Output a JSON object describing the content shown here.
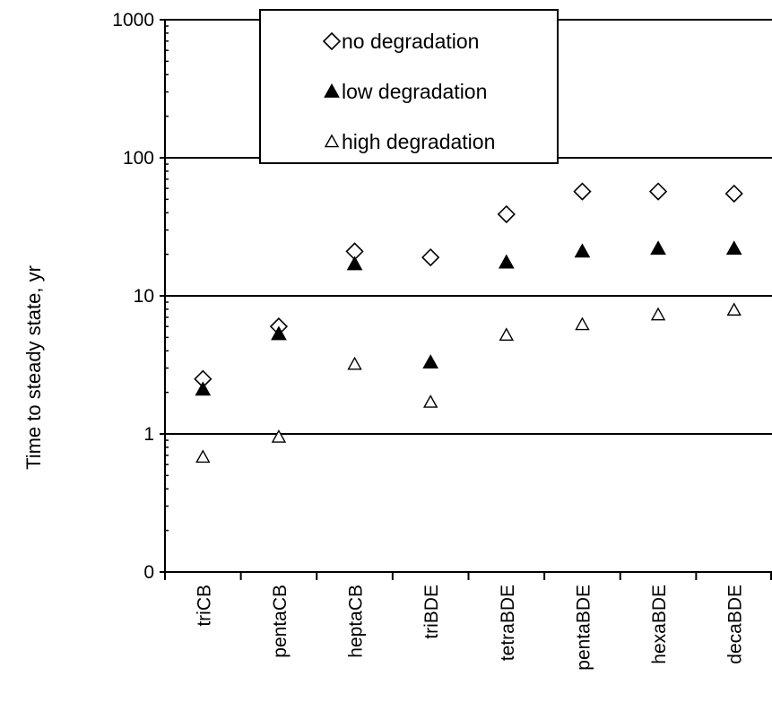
{
  "chart_data": {
    "type": "scatter",
    "categories": [
      "triCB",
      "pentaCB",
      "heptaCB",
      "triBDE",
      "tetraBDE",
      "pentaBDE",
      "hexaBDE",
      "decaBDE"
    ],
    "ylabel": "Time to steady state, yr",
    "y_scale": "log",
    "ylim": [
      0.1,
      1000
    ],
    "y_ticks": [
      {
        "value": 0.1,
        "label": "0"
      },
      {
        "value": 1,
        "label": "1"
      },
      {
        "value": 10,
        "label": "10"
      },
      {
        "value": 100,
        "label": "100"
      },
      {
        "value": 1000,
        "label": "1000"
      }
    ],
    "grid": "horizontal",
    "legend_position": "top-center",
    "series": [
      {
        "name": "no degradation",
        "marker": "diamond-open",
        "values": [
          2.5,
          6.0,
          21,
          19,
          39,
          57,
          57,
          55
        ]
      },
      {
        "name": "low degradation",
        "marker": "triangle-filled",
        "values": [
          2.1,
          5.3,
          17,
          3.3,
          17.5,
          21,
          22,
          22
        ]
      },
      {
        "name": "high degradation",
        "marker": "triangle-open",
        "values": [
          0.68,
          0.95,
          3.2,
          1.7,
          5.2,
          6.2,
          7.3,
          7.9
        ]
      }
    ]
  }
}
